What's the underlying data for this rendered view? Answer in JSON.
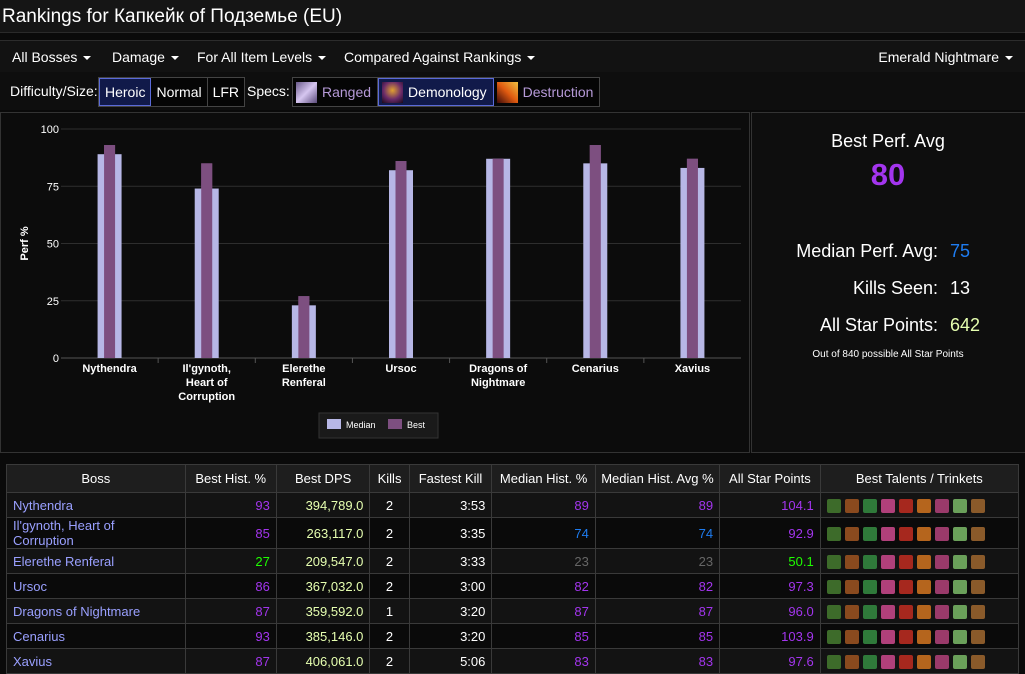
{
  "title": "Rankings for Капкейк of Подземье (EU)",
  "menus": {
    "bosses": "All Bosses",
    "metric": "Damage",
    "ilvl": "For All Item Levels",
    "compare": "Compared Against Rankings",
    "zone": "Emerald Nightmare"
  },
  "filters": {
    "difficulty_label": "Difficulty/Size:",
    "difficulties": [
      "Heroic",
      "Normal",
      "LFR"
    ],
    "specs_label": "Specs:",
    "specs": [
      "Ranged",
      "Demonology",
      "Destruction"
    ]
  },
  "stats": {
    "best_label": "Best Perf. Avg",
    "best_value": "80",
    "median_label": "Median Perf. Avg:",
    "median_value": "75",
    "kills_label": "Kills Seen:",
    "kills_value": "13",
    "asp_label": "All Star Points:",
    "asp_value": "642",
    "note": "Out of 840 possible All Star Points"
  },
  "colors": {
    "median_bar": "#b7b7e6",
    "best_bar": "#7d4f80",
    "epic": "#a335ee",
    "rare": "#1e7cf0",
    "uncommon": "#1eff00",
    "common": "#666666",
    "dps_text": "#e6ffb0"
  },
  "chart_data": {
    "type": "bar",
    "categories": [
      [
        "Nythendra"
      ],
      [
        "Il'gynoth,",
        "Heart of",
        "Corruption"
      ],
      [
        "Elerethe",
        "Renferal"
      ],
      [
        "Ursoc"
      ],
      [
        "Dragons of",
        "Nightmare"
      ],
      [
        "Cenarius"
      ],
      [
        "Xavius"
      ]
    ],
    "series": [
      {
        "name": "Median",
        "values": [
          89,
          74,
          23,
          82,
          87,
          85,
          83
        ]
      },
      {
        "name": "Best",
        "values": [
          93,
          85,
          27,
          86,
          87,
          93,
          87
        ]
      }
    ],
    "ylabel": "Perf %",
    "ylim": [
      0,
      100
    ],
    "yticks": [
      0,
      25,
      50,
      75,
      100
    ],
    "grid": true,
    "legend": "bottom"
  },
  "table": {
    "headers": [
      "Boss",
      "Best Hist. %",
      "Best DPS",
      "Kills",
      "Fastest Kill",
      "Median Hist. %",
      "Median Hist. Avg %",
      "All Star Points",
      "Best Talents / Trinkets"
    ],
    "rows": [
      {
        "boss": "Nythendra",
        "best": "93",
        "best_q": "epic",
        "dps": "394,789.0",
        "kills": "2",
        "fastest": "3:53",
        "median": "89",
        "median_q": "epic",
        "avg": "89",
        "avg_q": "epic",
        "asp": "104.1",
        "asp_q": "epic"
      },
      {
        "boss": "Il'gynoth, Heart of Corruption",
        "best": "85",
        "best_q": "epic",
        "dps": "263,117.0",
        "kills": "2",
        "fastest": "3:35",
        "median": "74",
        "median_q": "rare",
        "avg": "74",
        "avg_q": "rare",
        "asp": "92.9",
        "asp_q": "epic"
      },
      {
        "boss": "Elerethe Renferal",
        "best": "27",
        "best_q": "uncommon",
        "dps": "209,547.0",
        "kills": "2",
        "fastest": "3:33",
        "median": "23",
        "median_q": "common",
        "avg": "23",
        "avg_q": "common",
        "asp": "50.1",
        "asp_q": "uncommon"
      },
      {
        "boss": "Ursoc",
        "best": "86",
        "best_q": "epic",
        "dps": "367,032.0",
        "kills": "2",
        "fastest": "3:00",
        "median": "82",
        "median_q": "epic",
        "avg": "82",
        "avg_q": "epic",
        "asp": "97.3",
        "asp_q": "epic"
      },
      {
        "boss": "Dragons of Nightmare",
        "best": "87",
        "best_q": "epic",
        "dps": "359,592.0",
        "kills": "1",
        "fastest": "3:20",
        "median": "87",
        "median_q": "epic",
        "avg": "87",
        "avg_q": "epic",
        "asp": "96.0",
        "asp_q": "epic"
      },
      {
        "boss": "Cenarius",
        "best": "93",
        "best_q": "epic",
        "dps": "385,146.0",
        "kills": "2",
        "fastest": "3:20",
        "median": "85",
        "median_q": "epic",
        "avg": "85",
        "avg_q": "epic",
        "asp": "103.9",
        "asp_q": "epic"
      },
      {
        "boss": "Xavius",
        "best": "87",
        "best_q": "epic",
        "dps": "406,061.0",
        "kills": "2",
        "fastest": "5:06",
        "median": "83",
        "median_q": "epic",
        "avg": "83",
        "avg_q": "epic",
        "asp": "97.6",
        "asp_q": "epic"
      }
    ],
    "talent_icons": [
      "talent-1-icon",
      "talent-2-icon",
      "talent-3-icon",
      "talent-4-icon",
      "talent-5-icon",
      "talent-6-icon",
      "talent-7-icon",
      "trinket-1-icon",
      "trinket-2-icon"
    ],
    "talent_colors": [
      "#3d6b2a",
      "#8a4a1e",
      "#2f7a3a",
      "#b0407a",
      "#a6281e",
      "#b5651d",
      "#9a3a6a",
      "#6aa05a",
      "#8a5a2a"
    ]
  }
}
